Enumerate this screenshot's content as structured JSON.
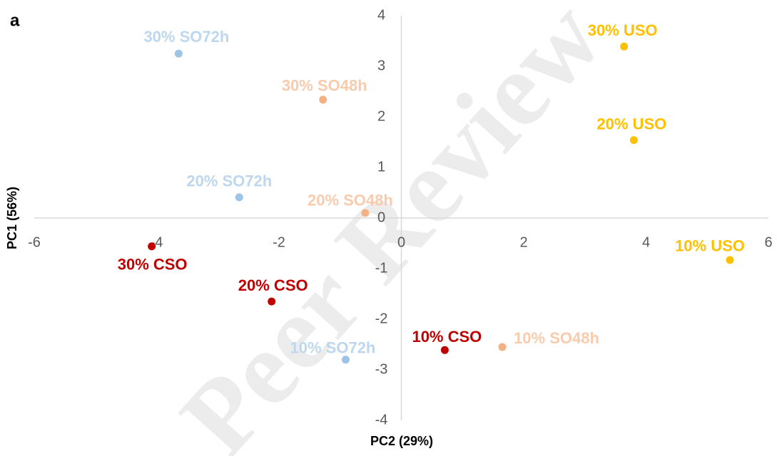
{
  "chart_data": {
    "type": "scatter",
    "panel_label": "a",
    "watermark": "Peer Review",
    "x_label": "PC2 (29%)",
    "y_label": "PC1 (56%)",
    "xlim": [
      -6,
      6
    ],
    "ylim": [
      -4,
      4
    ],
    "xticks": [
      -6,
      -4,
      -2,
      0,
      2,
      4,
      6
    ],
    "yticks": [
      -4,
      -3,
      -2,
      -1,
      0,
      1,
      2,
      3,
      4
    ],
    "series": [
      {
        "color": "#9dc3e6",
        "label_color": "#bdd7ee",
        "labels": [
          "30% SO72h",
          "20% SO72h",
          "10% SO72h"
        ],
        "x": [
          -3.64,
          -2.65,
          -0.91
        ],
        "values": [
          3.25,
          0.41,
          -2.8
        ]
      },
      {
        "color": "#f4b183",
        "label_color": "#f8cbad",
        "labels": [
          "30% SO48h",
          "20% SO48h",
          "10% SO48h"
        ],
        "x": [
          -1.28,
          -0.59,
          1.65
        ],
        "values": [
          2.34,
          0.1,
          -2.55
        ]
      },
      {
        "color": "#c00000",
        "label_color": "#c00000",
        "labels": [
          "30% CSO",
          "20% CSO",
          "10% CSO"
        ],
        "x": [
          -4.08,
          -2.12,
          0.71
        ],
        "values": [
          -0.56,
          -1.65,
          -2.61
        ]
      },
      {
        "color": "#ffc000",
        "label_color": "#ffc000",
        "labels": [
          "30% USO",
          "20% USO",
          "10% USO"
        ],
        "x": [
          3.64,
          3.8,
          5.37
        ],
        "values": [
          3.39,
          1.54,
          -0.83
        ]
      }
    ]
  }
}
